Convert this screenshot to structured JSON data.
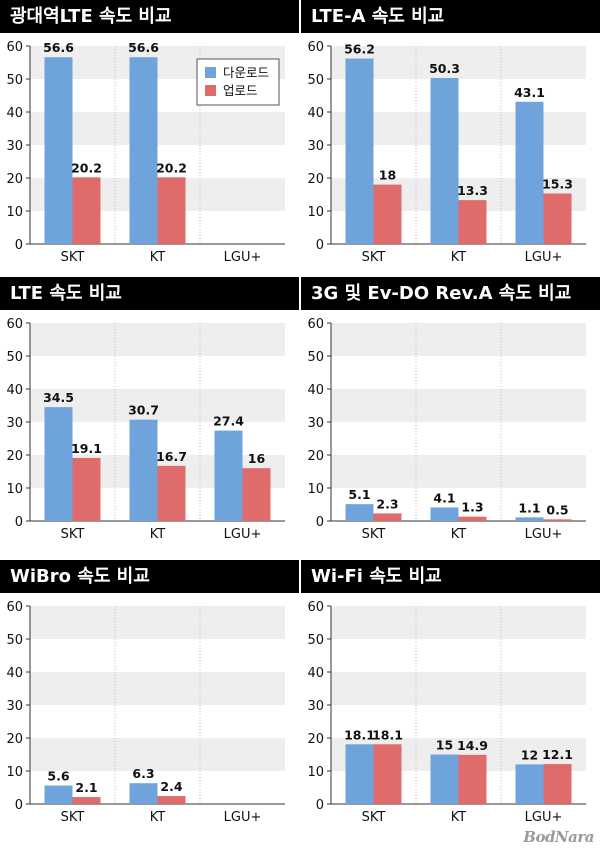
{
  "colors": {
    "download": "#6fa3dc",
    "upload": "#df6b6b",
    "band": "#eeeeee",
    "title_bg": "#000000"
  },
  "legend": {
    "download_label": "다운로드",
    "upload_label": "업로드",
    "panel_index": 0,
    "placement": "top-right"
  },
  "watermark": "BodNara",
  "chart_data": [
    {
      "type": "bar",
      "title": "광대역LTE 속도 비교",
      "categories": [
        "SKT",
        "KT",
        "LGU+"
      ],
      "ylim": [
        0,
        60
      ],
      "yticks": [
        0,
        10,
        20,
        30,
        40,
        50,
        60
      ],
      "series": [
        {
          "name": "다운로드",
          "values": [
            56.6,
            56.6,
            null
          ]
        },
        {
          "name": "업로드",
          "values": [
            20.2,
            20.2,
            null
          ]
        }
      ]
    },
    {
      "type": "bar",
      "title": "LTE-A 속도 비교",
      "categories": [
        "SKT",
        "KT",
        "LGU+"
      ],
      "ylim": [
        0,
        60
      ],
      "yticks": [
        0,
        10,
        20,
        30,
        40,
        50,
        60
      ],
      "series": [
        {
          "name": "다운로드",
          "values": [
            56.2,
            50.3,
            43.1
          ]
        },
        {
          "name": "업로드",
          "values": [
            18,
            13.3,
            15.3
          ]
        }
      ]
    },
    {
      "type": "bar",
      "title": "LTE 속도 비교",
      "categories": [
        "SKT",
        "KT",
        "LGU+"
      ],
      "ylim": [
        0,
        60
      ],
      "yticks": [
        0,
        10,
        20,
        30,
        40,
        50,
        60
      ],
      "series": [
        {
          "name": "다운로드",
          "values": [
            34.5,
            30.7,
            27.4
          ]
        },
        {
          "name": "업로드",
          "values": [
            19.1,
            16.7,
            16
          ]
        }
      ]
    },
    {
      "type": "bar",
      "title": "3G 및 Ev-DO Rev.A 속도 비교",
      "categories": [
        "SKT",
        "KT",
        "LGU+"
      ],
      "ylim": [
        0,
        60
      ],
      "yticks": [
        0,
        10,
        20,
        30,
        40,
        50,
        60
      ],
      "series": [
        {
          "name": "다운로드",
          "values": [
            5.1,
            4.1,
            1.1
          ]
        },
        {
          "name": "업로드",
          "values": [
            2.3,
            1.3,
            0.5
          ]
        }
      ]
    },
    {
      "type": "bar",
      "title": "WiBro 속도 비교",
      "categories": [
        "SKT",
        "KT",
        "LGU+"
      ],
      "ylim": [
        0,
        60
      ],
      "yticks": [
        0,
        10,
        20,
        30,
        40,
        50,
        60
      ],
      "series": [
        {
          "name": "다운로드",
          "values": [
            5.6,
            6.3,
            null
          ]
        },
        {
          "name": "업로드",
          "values": [
            2.1,
            2.4,
            null
          ]
        }
      ]
    },
    {
      "type": "bar",
      "title": "Wi-Fi 속도 비교",
      "categories": [
        "SKT",
        "KT",
        "LGU+"
      ],
      "ylim": [
        0,
        60
      ],
      "yticks": [
        0,
        10,
        20,
        30,
        40,
        50,
        60
      ],
      "series": [
        {
          "name": "다운로드",
          "values": [
            18.1,
            15,
            12
          ]
        },
        {
          "name": "업로드",
          "values": [
            18.1,
            14.9,
            12.1
          ]
        }
      ]
    }
  ]
}
